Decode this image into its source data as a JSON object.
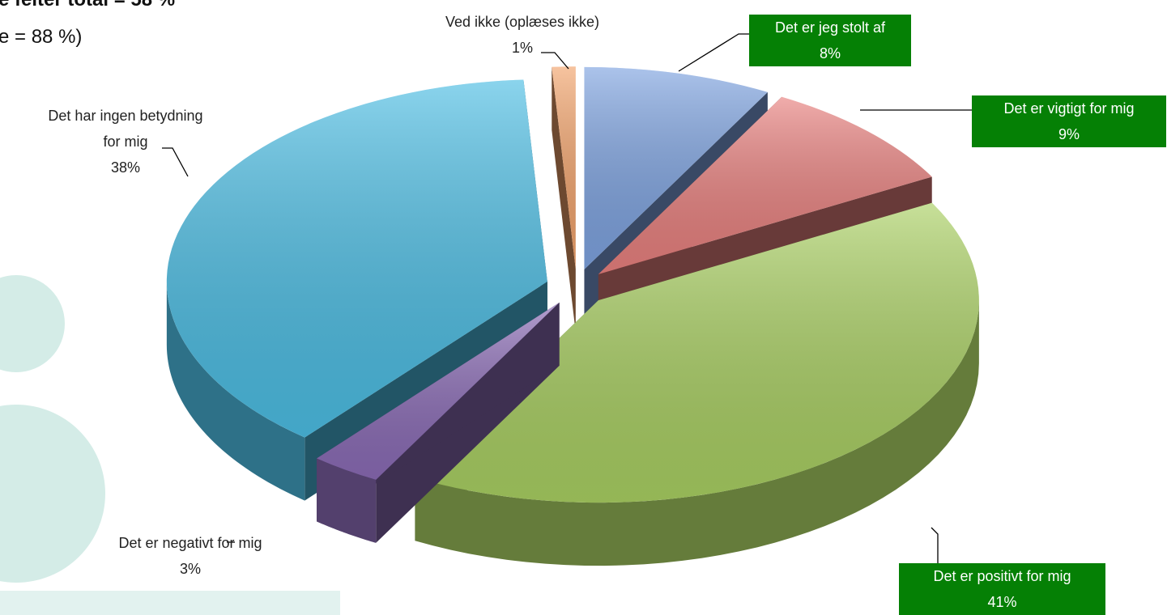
{
  "chart_data": {
    "type": "pie",
    "annotations": [
      "e felter total = 58 %",
      "e = 88 %)"
    ],
    "categories": [
      "Det er jeg stolt af",
      "Det er vigtigt for mig",
      "Det er positivt for mig",
      "Det er negativt for mig",
      "Det har ingen betydning for mig",
      "Ved ikke (oplæses ikke)"
    ],
    "values": [
      8,
      9,
      41,
      3,
      38,
      1
    ],
    "value_labels": [
      "8%",
      "9%",
      "41%",
      "3%",
      "38%",
      "1%"
    ],
    "colors": [
      "#7ea3e0",
      "#e8807e",
      "#a9cf62",
      "#8a6bb5",
      "#4cbde3",
      "#f2a36b"
    ],
    "highlighted": [
      0,
      1,
      2
    ],
    "highlight_color": "#058005"
  }
}
